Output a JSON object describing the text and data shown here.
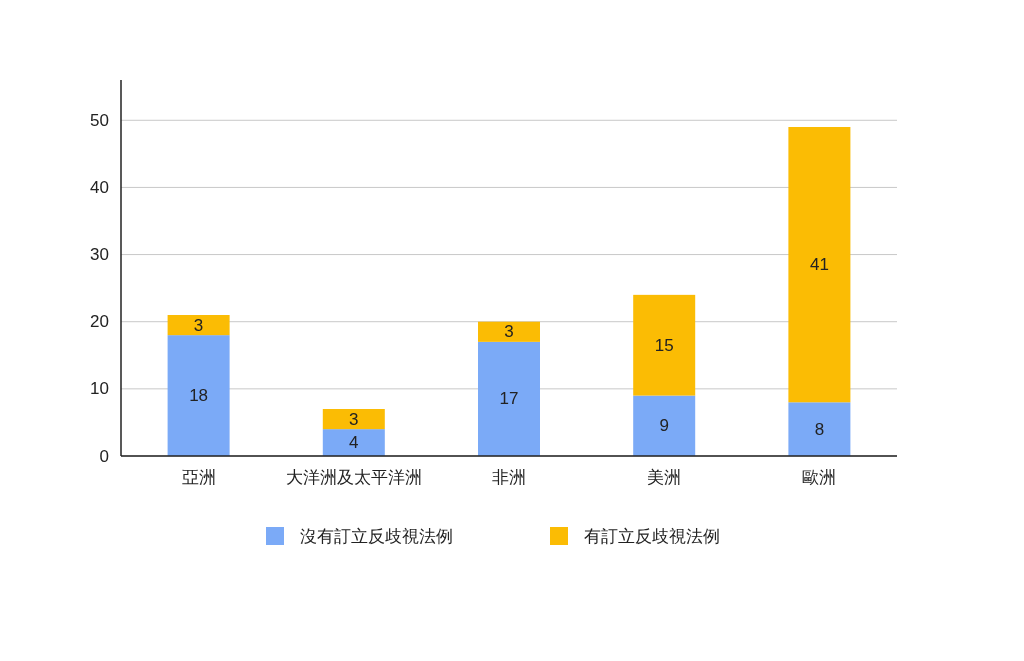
{
  "chart_data": {
    "type": "bar",
    "stacked": true,
    "categories": [
      "亞洲",
      "大洋洲及太平洋洲",
      "非洲",
      "美洲",
      "歐洲"
    ],
    "series": [
      {
        "name": "沒有訂立反歧視法例",
        "color": "#7baaf7",
        "values": [
          18,
          4,
          17,
          9,
          8
        ]
      },
      {
        "name": "有訂立反歧視法例",
        "color": "#fbbc04",
        "values": [
          3,
          3,
          3,
          15,
          41
        ]
      }
    ],
    "ylim": [
      0,
      56
    ],
    "yticks": [
      0,
      10,
      20,
      30,
      40,
      50
    ],
    "grid": "y",
    "legend": "bottom",
    "data_labels": true
  }
}
